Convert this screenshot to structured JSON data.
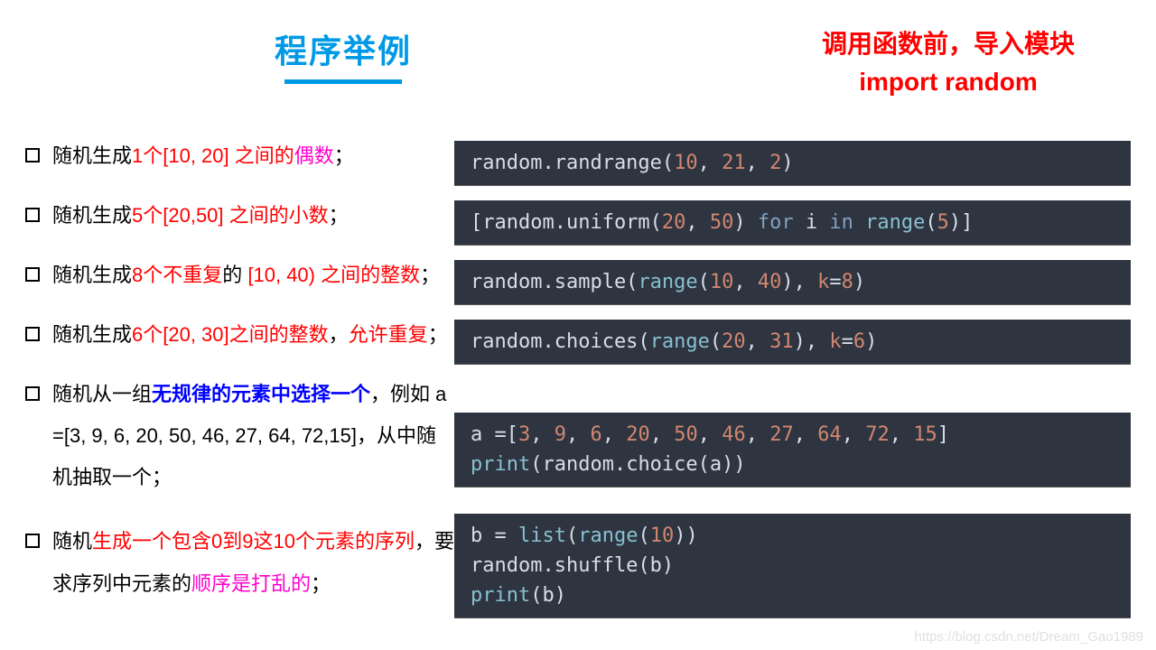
{
  "title": "程序举例",
  "note_line1": "调用函数前，导入模块",
  "note_line2": "import random",
  "colors": {
    "title": "#0099e6",
    "red": "#ff0000",
    "blue": "#0000ff",
    "magenta": "#ff00cc",
    "code_bg": "#2e3440",
    "code_fg": "#d8dee9",
    "code_teal": "#88c0d0",
    "code_orange": "#d08770",
    "code_purple": "#b48ead",
    "code_blue": "#81a1c1"
  },
  "items": [
    {
      "prefix": "随机生成",
      "hl1": "1个[10, 20] 之间的",
      "hl2": "偶数",
      "suffix": "；",
      "code": [
        {
          "t": "random.randrange(",
          "c": "fg"
        },
        {
          "t": "10",
          "c": "orange"
        },
        {
          "t": ", ",
          "c": "fg"
        },
        {
          "t": "21",
          "c": "orange"
        },
        {
          "t": ", ",
          "c": "fg"
        },
        {
          "t": "2",
          "c": "orange"
        },
        {
          "t": ")",
          "c": "fg"
        }
      ]
    },
    {
      "prefix": "随机生成",
      "hl1": "5个[20,50] 之间的小数",
      "suffix": "；",
      "code": [
        {
          "t": "[random.uniform(",
          "c": "fg"
        },
        {
          "t": "20",
          "c": "orange"
        },
        {
          "t": ", ",
          "c": "fg"
        },
        {
          "t": "50",
          "c": "orange"
        },
        {
          "t": ") ",
          "c": "fg"
        },
        {
          "t": "for",
          "c": "blue"
        },
        {
          "t": " i ",
          "c": "fg"
        },
        {
          "t": "in",
          "c": "blue"
        },
        {
          "t": " ",
          "c": "fg"
        },
        {
          "t": "range",
          "c": "teal"
        },
        {
          "t": "(",
          "c": "fg"
        },
        {
          "t": "5",
          "c": "orange"
        },
        {
          "t": ")]",
          "c": "fg"
        }
      ]
    },
    {
      "prefix": "随机生成",
      "hl1": "8个不重复",
      "mid": "的 ",
      "hl3": "[10, 40) 之间的整数",
      "suffix": "；",
      "code": [
        {
          "t": "random.sample(",
          "c": "fg"
        },
        {
          "t": "range",
          "c": "teal"
        },
        {
          "t": "(",
          "c": "fg"
        },
        {
          "t": "10",
          "c": "orange"
        },
        {
          "t": ", ",
          "c": "fg"
        },
        {
          "t": "40",
          "c": "orange"
        },
        {
          "t": "), ",
          "c": "fg"
        },
        {
          "t": "k",
          "c": "orange"
        },
        {
          "t": "=",
          "c": "fg"
        },
        {
          "t": "8",
          "c": "orange"
        },
        {
          "t": ")",
          "c": "fg"
        }
      ]
    },
    {
      "prefix": "随机生成",
      "hl1": "6个[20, 30]之间的整数",
      "mid": "，",
      "hl3": "允许重复",
      "suffix": "；",
      "code": [
        {
          "t": "random.choices(",
          "c": "fg"
        },
        {
          "t": "range",
          "c": "teal"
        },
        {
          "t": "(",
          "c": "fg"
        },
        {
          "t": "20",
          "c": "orange"
        },
        {
          "t": ", ",
          "c": "fg"
        },
        {
          "t": "31",
          "c": "orange"
        },
        {
          "t": "), ",
          "c": "fg"
        },
        {
          "t": "k",
          "c": "orange"
        },
        {
          "t": "=",
          "c": "fg"
        },
        {
          "t": "6",
          "c": "orange"
        },
        {
          "t": ")",
          "c": "fg"
        }
      ]
    },
    {
      "prefix": "随机从一组",
      "hl_blue": "无规律的元素中选择一个",
      "tail": "，例如 a =[3, 9, 6, 20, 50, 46, 27, 64, 72,15]，从中随机抽取一个；",
      "code": [
        {
          "t": "a =[",
          "c": "fg"
        },
        {
          "t": "3",
          "c": "orange"
        },
        {
          "t": ", ",
          "c": "fg"
        },
        {
          "t": "9",
          "c": "orange"
        },
        {
          "t": ", ",
          "c": "fg"
        },
        {
          "t": "6",
          "c": "orange"
        },
        {
          "t": ", ",
          "c": "fg"
        },
        {
          "t": "20",
          "c": "orange"
        },
        {
          "t": ", ",
          "c": "fg"
        },
        {
          "t": "50",
          "c": "orange"
        },
        {
          "t": ", ",
          "c": "fg"
        },
        {
          "t": "46",
          "c": "orange"
        },
        {
          "t": ", ",
          "c": "fg"
        },
        {
          "t": "27",
          "c": "orange"
        },
        {
          "t": ", ",
          "c": "fg"
        },
        {
          "t": "64",
          "c": "orange"
        },
        {
          "t": ", ",
          "c": "fg"
        },
        {
          "t": "72",
          "c": "orange"
        },
        {
          "t": ", ",
          "c": "fg"
        },
        {
          "t": "15",
          "c": "orange"
        },
        {
          "t": "]\n",
          "c": "fg"
        },
        {
          "t": "print",
          "c": "teal"
        },
        {
          "t": "(random.choice(a))",
          "c": "fg"
        }
      ]
    },
    {
      "prefix": "随机",
      "hl1": "生成一个包含0到9这10个元素的序列",
      "tail2a": "，要求序列中元素的",
      "hl_m": "顺序是打乱的",
      "tail2b": "；",
      "code": [
        {
          "t": "b = ",
          "c": "fg"
        },
        {
          "t": "list",
          "c": "teal"
        },
        {
          "t": "(",
          "c": "fg"
        },
        {
          "t": "range",
          "c": "teal"
        },
        {
          "t": "(",
          "c": "fg"
        },
        {
          "t": "10",
          "c": "orange"
        },
        {
          "t": "))\n",
          "c": "fg"
        },
        {
          "t": "random.shuffle(b)\n",
          "c": "fg"
        },
        {
          "t": "print",
          "c": "teal"
        },
        {
          "t": "(b)",
          "c": "fg"
        }
      ]
    }
  ],
  "watermark": "https://blog.csdn.net/Dream_Gao1989"
}
